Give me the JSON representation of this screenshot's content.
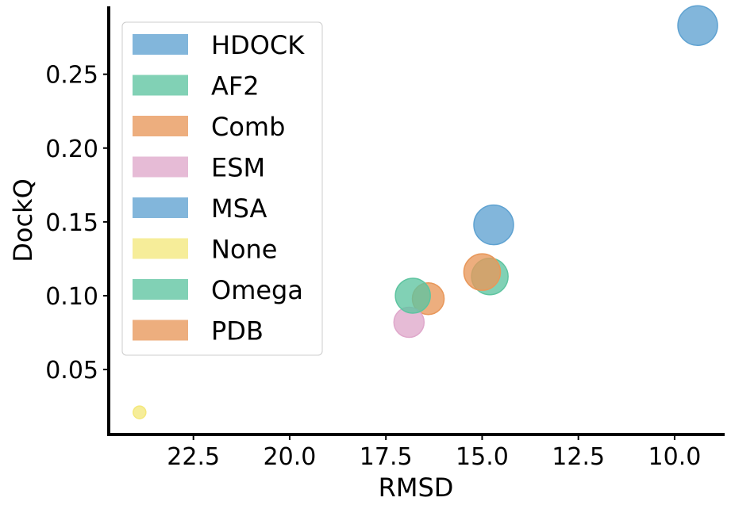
{
  "chart_data": {
    "type": "scatter",
    "xlabel": "RMSD",
    "ylabel": "DockQ",
    "x_inverted": true,
    "xlim": [
      24.7,
      8.7
    ],
    "ylim": [
      0.006,
      0.296
    ],
    "x_ticks": [
      22.5,
      20.0,
      17.5,
      15.0,
      12.5,
      10.0
    ],
    "x_tick_labels": [
      "22.5",
      "20.0",
      "17.5",
      "15.0",
      "12.5",
      "10.0"
    ],
    "y_ticks": [
      0.05,
      0.1,
      0.15,
      0.2,
      0.25
    ],
    "y_tick_labels": [
      "0.05",
      "0.10",
      "0.15",
      "0.20",
      "0.25"
    ],
    "grid": false,
    "legend_position": "top-left",
    "series": [
      {
        "name": "HDOCK",
        "color": "#5fa2d1",
        "points": [
          {
            "x": 9.4,
            "y": 0.283,
            "size": 25
          }
        ]
      },
      {
        "name": "AF2",
        "color": "#5ec4a0",
        "points": [
          {
            "x": 14.8,
            "y": 0.113,
            "size": 23
          }
        ]
      },
      {
        "name": "Comb",
        "color": "#e8975a",
        "points": [
          {
            "x": 16.4,
            "y": 0.098,
            "size": 20
          }
        ]
      },
      {
        "name": "ESM",
        "color": "#dfa8cb",
        "points": [
          {
            "x": 16.9,
            "y": 0.082,
            "size": 19
          }
        ]
      },
      {
        "name": "MSA",
        "color": "#5fa2d1",
        "points": [
          {
            "x": 14.7,
            "y": 0.148,
            "size": 25
          }
        ]
      },
      {
        "name": "None",
        "color": "#f4e87c",
        "points": [
          {
            "x": 23.9,
            "y": 0.021,
            "size": 8
          }
        ]
      },
      {
        "name": "Omega",
        "color": "#5ec4a0",
        "points": [
          {
            "x": 16.8,
            "y": 0.1,
            "size": 22
          }
        ]
      },
      {
        "name": "PDB",
        "color": "#e8975a",
        "points": [
          {
            "x": 15.0,
            "y": 0.116,
            "size": 23
          }
        ]
      }
    ]
  }
}
